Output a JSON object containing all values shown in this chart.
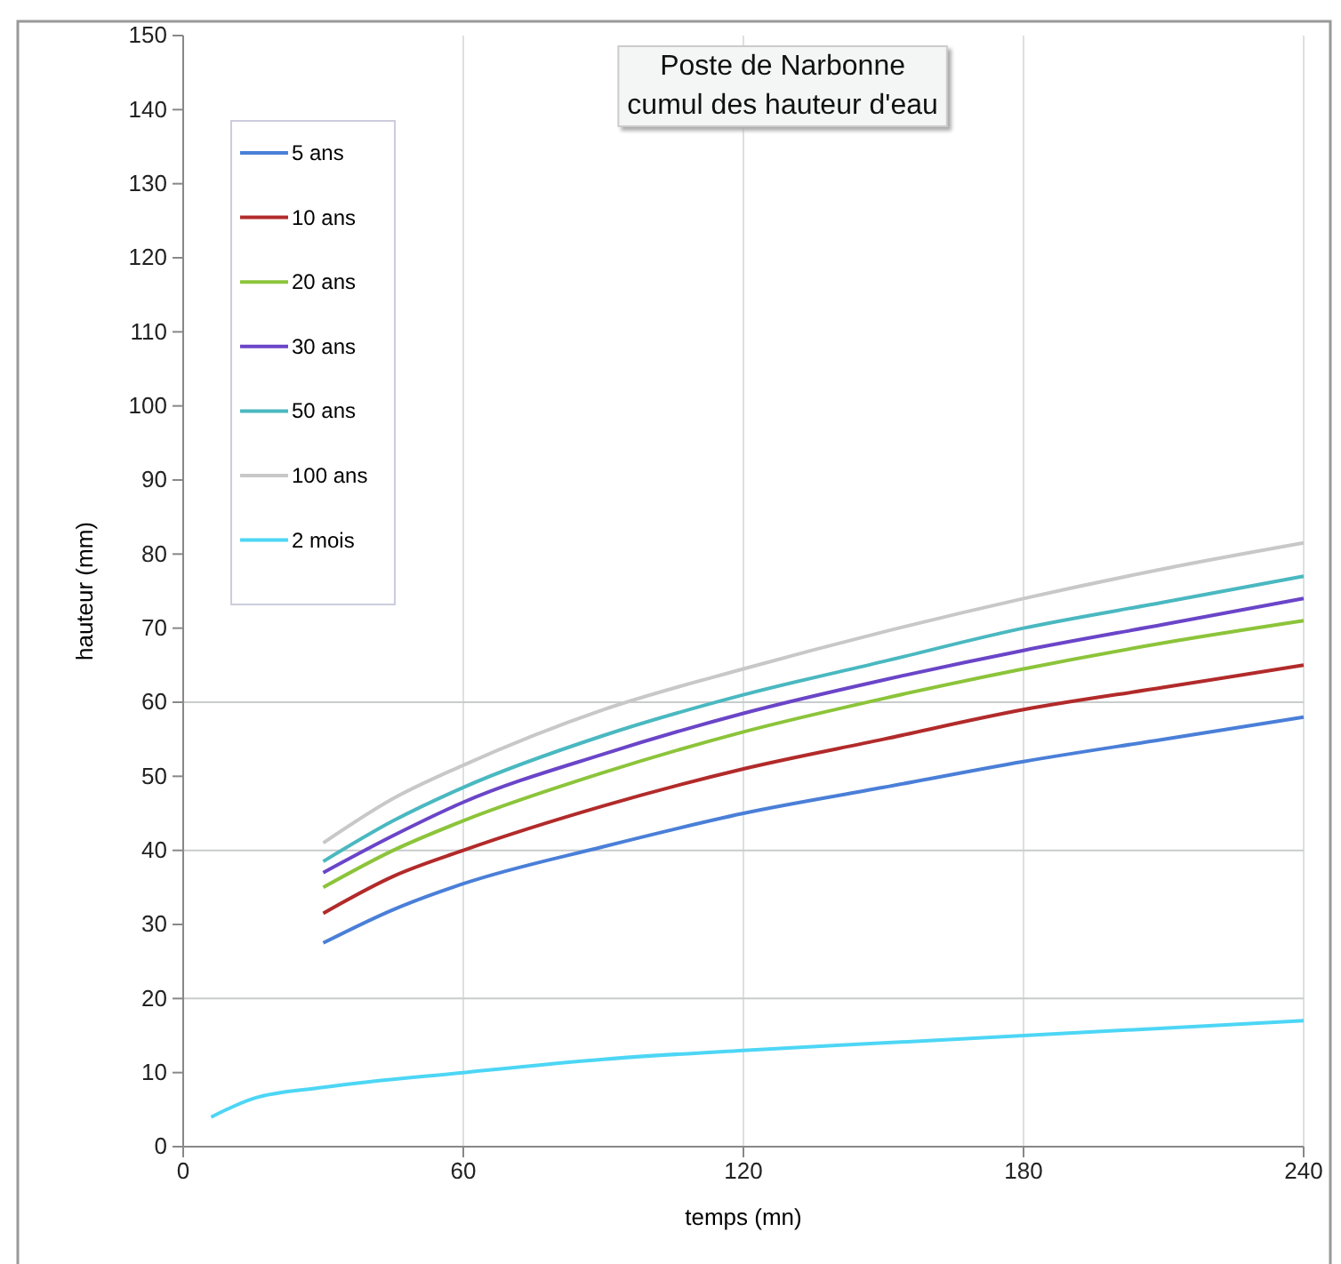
{
  "chart_data": {
    "type": "line",
    "title": "Poste de Narbonne\ncumul des hauteur d'eau",
    "xlabel": "temps (mn)",
    "ylabel": "hauteur  (mm)",
    "xlim": [
      0,
      240
    ],
    "xticks": [
      0,
      60,
      120,
      180,
      240
    ],
    "ylim": [
      0,
      150
    ],
    "yticks": [
      0,
      10,
      20,
      30,
      40,
      50,
      60,
      70,
      80,
      90,
      100,
      110,
      120,
      130,
      140,
      150
    ],
    "grid": "x",
    "legend": "top left",
    "marker": "none",
    "line_style": "solid",
    "ref_lines": [
      {
        "axis": "y",
        "value": 20,
        "color": "#c8cccc"
      },
      {
        "axis": "y",
        "value": 40,
        "color": "#c8cccc"
      },
      {
        "axis": "y",
        "value": 60,
        "color": "#c8cccc"
      }
    ],
    "series": [
      {
        "name": "5 ans",
        "color": "#4a7fd8",
        "x": [
          30,
          45,
          60,
          90,
          120,
          150,
          180,
          210,
          240
        ],
        "values": [
          27.5,
          32,
          35.5,
          40.5,
          45,
          48.5,
          52,
          55,
          58
        ]
      },
      {
        "name": "10 ans",
        "color": "#b22a2a",
        "x": [
          30,
          45,
          60,
          90,
          120,
          150,
          180,
          210,
          240
        ],
        "values": [
          31.5,
          36.5,
          40,
          46,
          51,
          55,
          59,
          62,
          65
        ]
      },
      {
        "name": "20 ans",
        "color": "#8cc43a",
        "x": [
          30,
          45,
          60,
          90,
          120,
          150,
          180,
          210,
          240
        ],
        "values": [
          35,
          40,
          44,
          50.5,
          56,
          60.5,
          64.5,
          68,
          71
        ]
      },
      {
        "name": "30 ans",
        "color": "#6a45c8",
        "x": [
          30,
          45,
          60,
          90,
          120,
          150,
          180,
          210,
          240
        ],
        "values": [
          37,
          42,
          46.5,
          53,
          58.5,
          63,
          67,
          70.5,
          74
        ]
      },
      {
        "name": "50 ans",
        "color": "#4ab8c0",
        "x": [
          30,
          45,
          60,
          90,
          120,
          150,
          180,
          210,
          240
        ],
        "values": [
          38.5,
          44,
          48.5,
          55.5,
          61,
          65.5,
          70,
          73.5,
          77
        ]
      },
      {
        "name": "100 ans",
        "color": "#c8c8c8",
        "x": [
          30,
          45,
          60,
          90,
          120,
          150,
          180,
          210,
          240
        ],
        "values": [
          41,
          47,
          51.5,
          59,
          64.5,
          69.5,
          74,
          78,
          81.5
        ]
      },
      {
        "name": "2 mois",
        "color": "#4dd6f5",
        "x": [
          6,
          15,
          30,
          60,
          90,
          120,
          150,
          180,
          210,
          240
        ],
        "values": [
          4,
          6.5,
          8,
          10,
          11.8,
          13,
          14,
          15,
          16,
          17
        ]
      }
    ]
  }
}
